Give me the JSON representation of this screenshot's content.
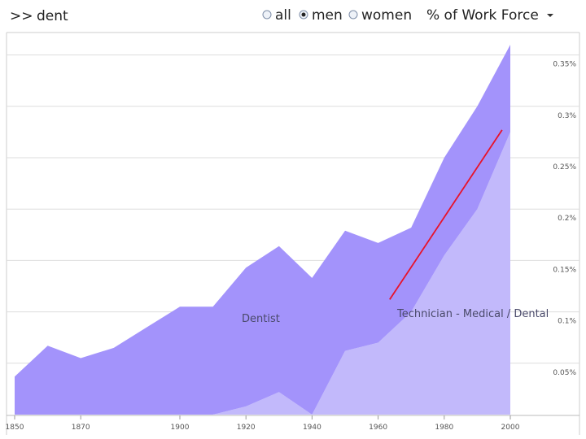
{
  "search": {
    "prefix": ">>",
    "query": "dent"
  },
  "filters": {
    "options": [
      {
        "label": "all",
        "selected": false
      },
      {
        "label": "men",
        "selected": true
      },
      {
        "label": "women",
        "selected": false
      }
    ],
    "measure": "% of Work Force"
  },
  "chart_data": {
    "type": "area",
    "stacked": true,
    "x": [
      1850,
      1860,
      1870,
      1880,
      1890,
      1900,
      1910,
      1920,
      1930,
      1940,
      1950,
      1960,
      1970,
      1980,
      1990,
      2000
    ],
    "series": [
      {
        "name": "Technician - Medical / Dental",
        "color": "#c2b9fb",
        "values": [
          0,
          0,
          0,
          0,
          0,
          0,
          0,
          0.008,
          0.022,
          0,
          0.062,
          0.07,
          0.1,
          0.155,
          0.2,
          0.275
        ]
      },
      {
        "name": "Dentist",
        "color": "#a393fb",
        "values": [
          0.037,
          0.067,
          0.055,
          0.065,
          0.085,
          0.105,
          0.105,
          0.135,
          0.142,
          0.133,
          0.117,
          0.097,
          0.082,
          0.095,
          0.1,
          0.085
        ]
      }
    ],
    "highlight_line": {
      "color": "#e8122a",
      "from": [
        1963.5,
        0.112
      ],
      "to": [
        1997.5,
        0.277
      ]
    },
    "yticks": [
      0.05,
      0.1,
      0.15,
      0.2,
      0.25,
      0.3,
      0.35
    ],
    "ytick_labels": [
      "0.05%",
      "0.1%",
      "0.15%",
      "0.2%",
      "0.25%",
      "0.3%",
      "0.35%"
    ],
    "xticks": [
      1850,
      1870,
      1900,
      1920,
      1940,
      1960,
      1980,
      2000
    ],
    "xtick_labels": [
      "1850",
      "1870",
      "1900",
      "1920",
      "1940",
      "1960",
      "1980",
      "2000"
    ],
    "xlim": [
      1850,
      2000
    ],
    "ylim": [
      0,
      0.36
    ],
    "grid": true,
    "series_labels_inline": [
      "Dentist",
      "Technician - Medical / Dental"
    ]
  }
}
